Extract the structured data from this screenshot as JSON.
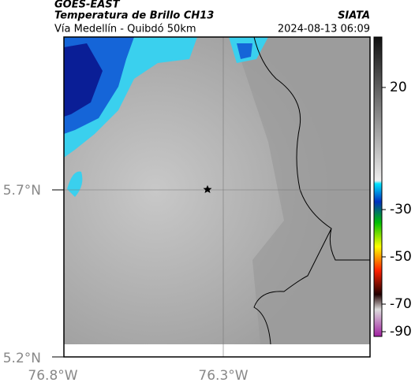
{
  "header": {
    "source": "GOES-EAST",
    "product": "Temperatura de Brillo CH13",
    "brand": "SIATA",
    "route": "Vía Medellín - Quibdó 50km",
    "timestamp": "2024-08-13 06:09"
  },
  "axes": {
    "latitudes": [
      "5.7°N",
      "5.2°N"
    ],
    "longitudes": [
      "76.8°W",
      "76.3°W"
    ]
  },
  "colorbar": {
    "ticks": [
      "20",
      "-30",
      "-50",
      "-70",
      "-90"
    ]
  }
}
